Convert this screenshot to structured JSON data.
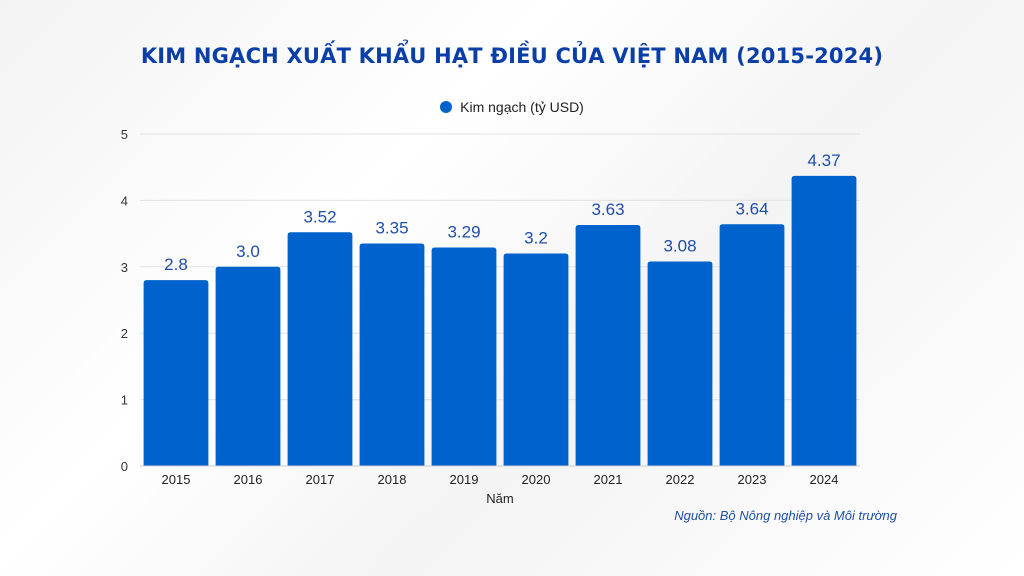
{
  "chart_data": {
    "type": "bar",
    "title": "KIM NGẠCH XUẤT KHẨU HẠT ĐIỀU CỦA VIỆT NAM (2015-2024)",
    "xlabel": "Năm",
    "ylabel": "",
    "categories": [
      "2015",
      "2016",
      "2017",
      "2018",
      "2019",
      "2020",
      "2021",
      "2022",
      "2023",
      "2024"
    ],
    "series": [
      {
        "name": "Kim ngạch (tỷ USD)",
        "values": [
          2.8,
          3.0,
          3.52,
          3.35,
          3.29,
          3.2,
          3.63,
          3.08,
          3.64,
          4.37
        ],
        "data_labels": [
          "2.8",
          "3.0",
          "3.52",
          "3.35",
          "3.29",
          "3.2",
          "3.63",
          "3.08",
          "3.64",
          "4.37"
        ],
        "color": "#0062cc"
      }
    ],
    "ylim": [
      0,
      5
    ],
    "yticks": [
      0,
      1,
      2,
      3,
      4,
      5
    ],
    "grid": true,
    "legend_position": "top-center",
    "source": "Nguồn: Bộ Nông nghiệp và Môi trường"
  },
  "colors": {
    "title": "#0a3fa8",
    "bar": "#0062cc",
    "data_label": "#1f4ea8",
    "grid": "#e2e2e2",
    "source": "#1f4ea8"
  }
}
